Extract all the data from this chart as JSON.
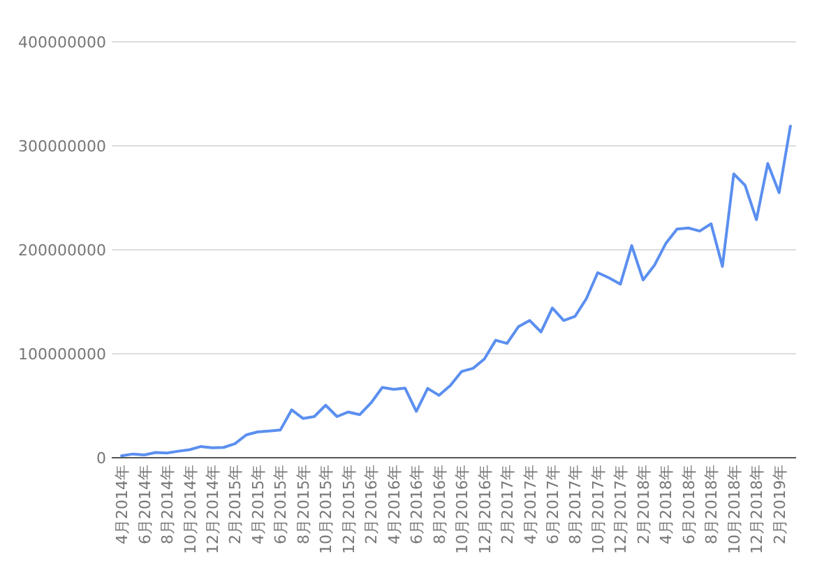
{
  "chart_data": {
    "type": "line",
    "categories": [
      "4月2014年",
      null,
      "6月2014年",
      null,
      "8月2014年",
      null,
      "10月2014年",
      null,
      "12月2014年",
      null,
      "2月2015年",
      null,
      "4月2015年",
      null,
      "6月2015年",
      null,
      "8月2015年",
      null,
      "10月2015年",
      null,
      "12月2015年",
      null,
      "2月2016年",
      null,
      "4月2016年",
      null,
      "6月2016年",
      null,
      "8月2016年",
      null,
      "10月2016年",
      null,
      "12月2016年",
      null,
      "2月2017年",
      null,
      "4月2017年",
      null,
      "6月2017年",
      null,
      "8月2017年",
      null,
      "10月2017年",
      null,
      "12月2017年",
      null,
      "2月2018年",
      null,
      "4月2018年",
      null,
      "6月2018年",
      null,
      "8月2018年",
      null,
      "10月2018年",
      null,
      "12月2018年",
      null,
      "2月2019年",
      null
    ],
    "values": [
      1800000,
      3600000,
      2700000,
      5000000,
      4500000,
      6300000,
      7700000,
      10800000,
      9500000,
      9900000,
      13500000,
      22000000,
      24800000,
      25700000,
      26600000,
      46000000,
      37800000,
      39600000,
      50500000,
      39600000,
      44000000,
      41400000,
      52700000,
      67600000,
      65800000,
      67000000,
      44600000,
      66700000,
      60000000,
      69400000,
      83000000,
      86000000,
      95000000,
      113000000,
      110000000,
      126000000,
      132000000,
      121000000,
      144000000,
      132000000,
      136000000,
      153000000,
      178000000,
      173000000,
      167000000,
      204000000,
      171000000,
      185000000,
      206000000,
      220000000,
      221000000,
      218000000,
      225000000,
      184000000,
      273000000,
      262000000,
      229000000,
      283000000,
      255000000,
      319000000
    ],
    "color": "#5b8ff0",
    "ylim": [
      0,
      400000000
    ],
    "yticks": [
      0,
      100000000,
      200000000,
      300000000,
      400000000
    ],
    "grid": "y"
  }
}
